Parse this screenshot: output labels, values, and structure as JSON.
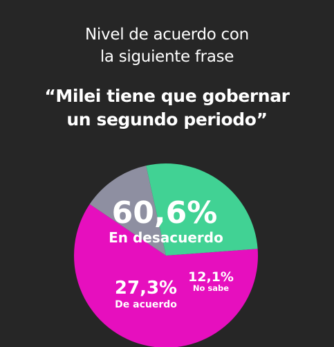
{
  "header": {
    "line1": "Nivel de acuerdo con",
    "line2": "la siguiente frase"
  },
  "quote": {
    "line1": "“Milei tiene que gobernar",
    "line2": "un segundo periodo”"
  },
  "chart_data": {
    "type": "pie",
    "slices": [
      {
        "label": "En desacuerdo",
        "value": 60.6,
        "value_label": "60,6%",
        "color": "#E60FBE"
      },
      {
        "label": "No sabe",
        "value": 12.1,
        "value_label": "12,1%",
        "color": "#8E8FA1"
      },
      {
        "label": "De acuerdo",
        "value": 27.3,
        "value_label": "27,3%",
        "color": "#41D294"
      }
    ]
  }
}
